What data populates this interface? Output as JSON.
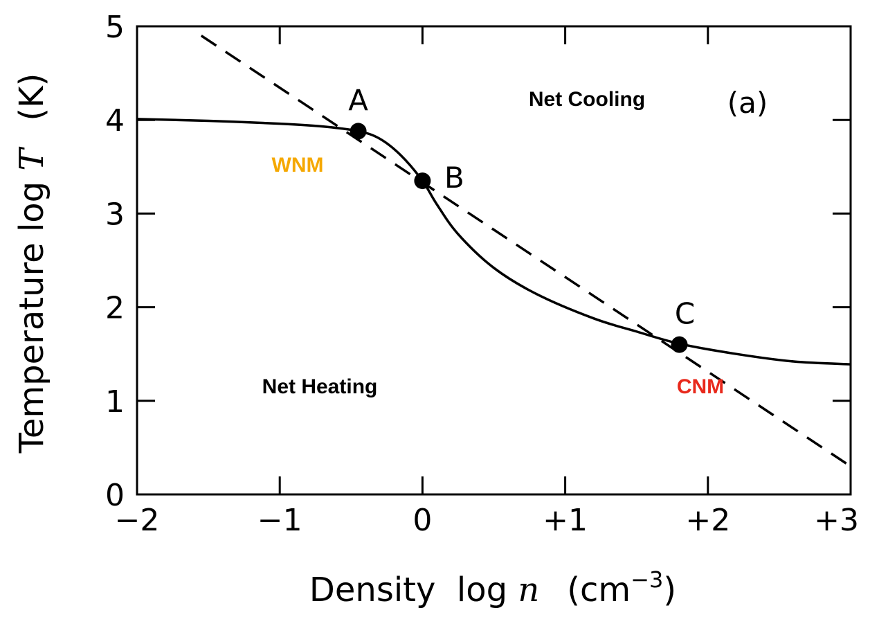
{
  "chart_data": {
    "type": "line",
    "xlabel": {
      "prefix": "Density  log ",
      "var": "n",
      "unit": "(cm",
      "exp": "−3",
      "close": ")"
    },
    "ylabel": {
      "prefix": "Temperature  log ",
      "var": "T",
      "unit": "(K)"
    },
    "xlim": [
      -2,
      3
    ],
    "ylim": [
      0,
      5
    ],
    "x_tick_labels": [
      "−2",
      "−1",
      "0",
      "+1",
      "+2",
      "+3"
    ],
    "y_tick_labels": [
      "0",
      "1",
      "2",
      "3",
      "4",
      "5"
    ],
    "x_ticks": [
      -2,
      -1,
      0,
      1,
      2,
      3
    ],
    "y_ticks": [
      0,
      1,
      2,
      3,
      4,
      5
    ],
    "grid": false,
    "series": [
      {
        "style": "solid",
        "x": [
          -2.0,
          -1.5,
          -1.0,
          -0.7,
          -0.45,
          -0.3,
          -0.15,
          0.0,
          0.1,
          0.25,
          0.5,
          0.8,
          1.2,
          1.5,
          1.8,
          2.2,
          2.6,
          3.0
        ],
        "y": [
          4.01,
          3.99,
          3.96,
          3.93,
          3.88,
          3.8,
          3.62,
          3.35,
          3.1,
          2.78,
          2.42,
          2.14,
          1.88,
          1.74,
          1.61,
          1.5,
          1.42,
          1.39
        ]
      },
      {
        "style": "dashed",
        "x": [
          -1.55,
          3.0
        ],
        "y": [
          4.9,
          0.3
        ]
      }
    ],
    "points": [
      {
        "label": "A",
        "x": -0.45,
        "y": 3.88
      },
      {
        "label": "B",
        "x": 0.0,
        "y": 3.35
      },
      {
        "label": "C",
        "x": 1.8,
        "y": 1.6
      }
    ],
    "annotations": {
      "net_cooling": "Net Cooling",
      "net_heating": "Net Heating",
      "wnm": "WNM",
      "cnm": "CNM",
      "panel": "(a)"
    },
    "colors": {
      "wnm": "#F5A800",
      "cnm": "#E8291C",
      "line": "#000000"
    }
  }
}
